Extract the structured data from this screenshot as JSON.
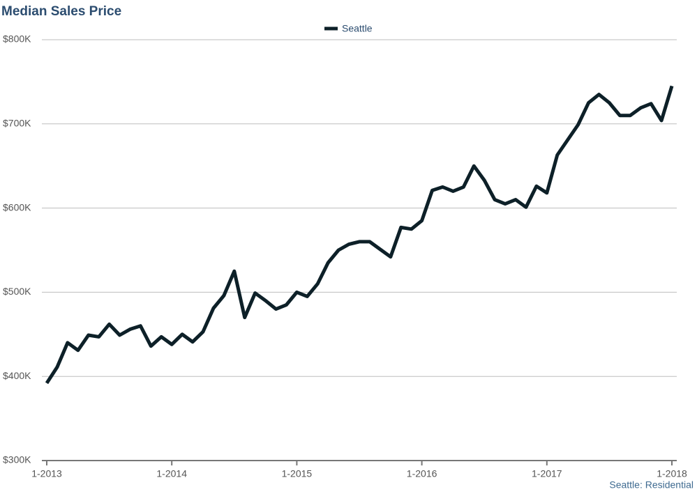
{
  "chart_data": {
    "type": "line",
    "title": "Median Sales Price",
    "source": "Seattle: Residential",
    "categories": [
      "1-2013",
      null,
      null,
      null,
      null,
      null,
      null,
      null,
      null,
      null,
      null,
      null,
      "1-2014",
      null,
      null,
      null,
      null,
      null,
      null,
      null,
      null,
      null,
      null,
      null,
      "1-2015",
      null,
      null,
      null,
      null,
      null,
      null,
      null,
      null,
      null,
      null,
      null,
      "1-2016",
      null,
      null,
      null,
      null,
      null,
      null,
      null,
      null,
      null,
      null,
      null,
      "1-2017",
      null,
      null,
      null,
      null,
      null,
      null,
      null,
      null,
      null,
      null,
      null,
      "1-2018"
    ],
    "series": [
      {
        "name": "Seattle",
        "color": "#0d2028",
        "values": [
          392000,
          411000,
          440000,
          431000,
          449000,
          447000,
          462000,
          449000,
          456000,
          460000,
          436000,
          447000,
          438000,
          450000,
          441000,
          453000,
          481000,
          496000,
          525000,
          470000,
          499000,
          490000,
          480000,
          485000,
          500000,
          495000,
          510000,
          535000,
          550000,
          557000,
          560000,
          560000,
          551000,
          542000,
          577000,
          575000,
          585000,
          621000,
          625000,
          620000,
          625000,
          650000,
          633000,
          610000,
          605000,
          610000,
          601000,
          626000,
          618000,
          663000,
          681000,
          699000,
          725000,
          735000,
          725000,
          710000,
          710000,
          719000,
          724000,
          704000,
          745000
        ]
      }
    ],
    "ylim": [
      300000,
      800000
    ],
    "yticks": [
      {
        "value": 300000,
        "label": "$300K"
      },
      {
        "value": 400000,
        "label": "$400K"
      },
      {
        "value": 500000,
        "label": "$500K"
      },
      {
        "value": 600000,
        "label": "$600K"
      },
      {
        "value": 700000,
        "label": "$700K"
      },
      {
        "value": 800000,
        "label": "$800K"
      }
    ],
    "grid": true,
    "legend": "top"
  }
}
